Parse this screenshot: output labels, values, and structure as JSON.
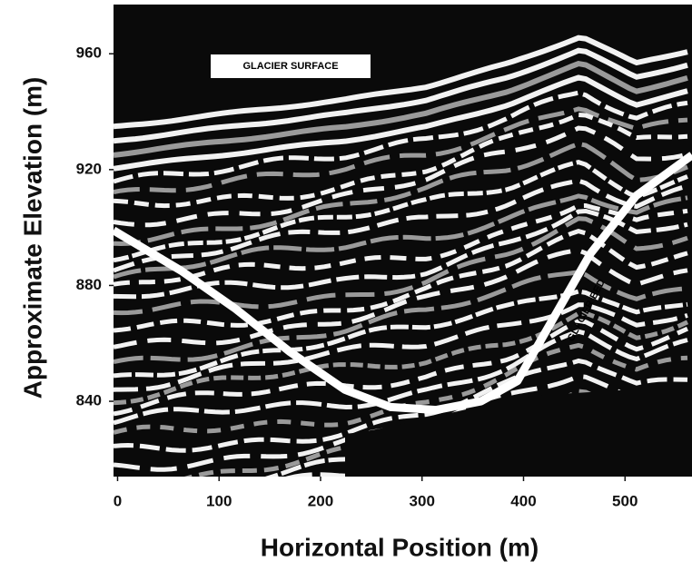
{
  "chart_data": {
    "type": "line",
    "x_label": "Horizontal Position (m)",
    "y_label": "Approximate Elevation (m)",
    "annotations": [
      "GLACIER SURFACE",
      "GLACIER BED"
    ],
    "xlim": [
      -4,
      566
    ],
    "ylim": [
      814,
      977
    ],
    "xticks": [
      0,
      100,
      200,
      300,
      400,
      500
    ],
    "yticks": [
      840,
      880,
      920,
      960
    ],
    "color": "#ffffff",
    "x": [
      -4,
      63,
      116,
      170,
      224,
      269,
      314,
      358,
      394,
      430,
      466,
      511,
      566
    ],
    "values": [
      899,
      885,
      872,
      857,
      844,
      838,
      837,
      840,
      847,
      869,
      891,
      911,
      925
    ]
  }
}
